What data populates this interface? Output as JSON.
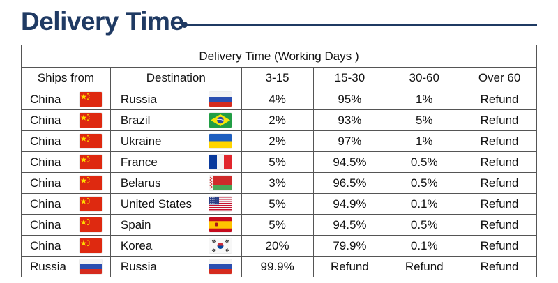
{
  "header": {
    "title": "Delivery Time"
  },
  "table": {
    "caption": "Delivery Time (Working Days )",
    "columns": [
      "Ships from",
      "Destination",
      "3-15",
      "15-30",
      "30-60",
      "Over 60"
    ],
    "rows": [
      {
        "from": "China",
        "from_flag": "china-flag-icon",
        "to": "Russia",
        "to_flag": "russia-flag-icon",
        "v": [
          "4%",
          "95%",
          "1%",
          "Refund"
        ]
      },
      {
        "from": "China",
        "from_flag": "china-flag-icon",
        "to": "Brazil",
        "to_flag": "brazil-flag-icon",
        "v": [
          "2%",
          "93%",
          "5%",
          "Refund"
        ]
      },
      {
        "from": "China",
        "from_flag": "china-flag-icon",
        "to": "Ukraine",
        "to_flag": "ukraine-flag-icon",
        "v": [
          "2%",
          "97%",
          "1%",
          "Refund"
        ]
      },
      {
        "from": "China",
        "from_flag": "china-flag-icon",
        "to": "France",
        "to_flag": "france-flag-icon",
        "v": [
          "5%",
          "94.5%",
          "0.5%",
          "Refund"
        ]
      },
      {
        "from": "China",
        "from_flag": "china-flag-icon",
        "to": "Belarus",
        "to_flag": "belarus-flag-icon",
        "v": [
          "3%",
          "96.5%",
          "0.5%",
          "Refund"
        ]
      },
      {
        "from": "China",
        "from_flag": "china-flag-icon",
        "to": "United States",
        "to_flag": "usa-flag-icon",
        "v": [
          "5%",
          "94.9%",
          "0.1%",
          "Refund"
        ]
      },
      {
        "from": "China",
        "from_flag": "china-flag-icon",
        "to": "Spain",
        "to_flag": "spain-flag-icon",
        "v": [
          "5%",
          "94.5%",
          "0.5%",
          "Refund"
        ]
      },
      {
        "from": "China",
        "from_flag": "china-flag-icon",
        "to": "Korea",
        "to_flag": "korea-flag-icon",
        "v": [
          "20%",
          "79.9%",
          "0.1%",
          "Refund"
        ]
      },
      {
        "from": "Russia",
        "from_flag": "russia-flag-icon",
        "to": "Russia",
        "to_flag": "russia-flag-icon",
        "v": [
          "99.9%",
          "Refund",
          "Refund",
          "Refund"
        ]
      }
    ]
  },
  "colors": {
    "title": "#1f3a63",
    "border": "#555555"
  }
}
